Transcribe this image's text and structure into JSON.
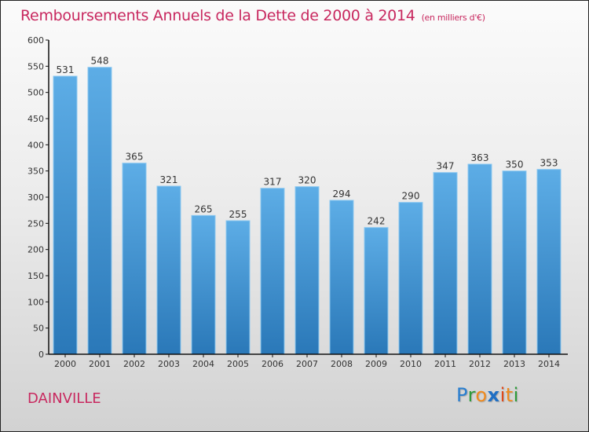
{
  "header": {
    "title": "Remboursements Annuels de la Dette de 2000 à 2014",
    "unit": "(en milliers d'€)"
  },
  "footer": {
    "city": "DAINVILLE",
    "logo": {
      "letters": [
        {
          "char": "P",
          "color": "#2a7fd0"
        },
        {
          "char": "r",
          "color": "#2e9b3a"
        },
        {
          "char": "o",
          "color": "#f08a1c"
        },
        {
          "char": "x",
          "color": "#1f6fc4"
        },
        {
          "char": "i",
          "color": "#e04a1a"
        },
        {
          "char": "t",
          "color": "#f08a1c"
        },
        {
          "char": "i",
          "color": "#2e9b3a"
        }
      ]
    }
  },
  "colors": {
    "title": "#c8285f",
    "bar_top": "#5dade6",
    "bar_bottom": "#2a78b8",
    "bar_edge": "#8cc8f0"
  },
  "chart_data": {
    "type": "bar",
    "title": "Remboursements Annuels de la Dette de 2000 à 2014",
    "subtitle": "(en milliers d'€)",
    "xlabel": "",
    "ylabel": "",
    "categories": [
      "2000",
      "2001",
      "2002",
      "2003",
      "2004",
      "2005",
      "2006",
      "2007",
      "2008",
      "2009",
      "2010",
      "2011",
      "2012",
      "2013",
      "2014"
    ],
    "values": [
      531,
      548,
      365,
      321,
      265,
      255,
      317,
      320,
      294,
      242,
      290,
      347,
      363,
      350,
      353
    ],
    "ylim": [
      0,
      600
    ],
    "yticks": [
      0,
      50,
      100,
      150,
      200,
      250,
      300,
      350,
      400,
      450,
      500,
      550,
      600
    ],
    "grid": false,
    "legend": "none",
    "data_labels": true
  }
}
